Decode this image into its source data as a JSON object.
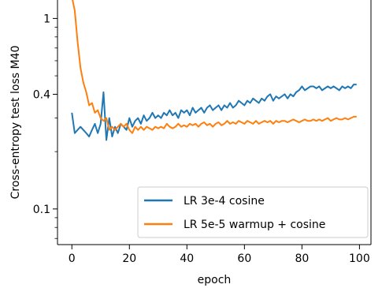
{
  "chart_data": {
    "type": "line",
    "title": "",
    "xlabel": "epoch",
    "ylabel": "Cross-entropy test loss M40",
    "xlim": [
      -5,
      104
    ],
    "ylim": [
      0.065,
      1.25
    ],
    "yscale": "log",
    "grid": false,
    "legend_position": "lower-right",
    "x_ticks": [
      0,
      20,
      40,
      60,
      80,
      100
    ],
    "x_tick_labels": [
      "0",
      "20",
      "40",
      "60",
      "80",
      "100"
    ],
    "y_ticks": [
      0.1,
      0.4,
      1
    ],
    "y_tick_labels": [
      "0.1",
      "0.4",
      "1"
    ],
    "x": [
      0,
      1,
      2,
      3,
      4,
      5,
      6,
      7,
      8,
      9,
      10,
      11,
      12,
      13,
      14,
      15,
      16,
      17,
      18,
      19,
      20,
      21,
      22,
      23,
      24,
      25,
      26,
      27,
      28,
      29,
      30,
      31,
      32,
      33,
      34,
      35,
      36,
      37,
      38,
      39,
      40,
      41,
      42,
      43,
      44,
      45,
      46,
      47,
      48,
      49,
      50,
      51,
      52,
      53,
      54,
      55,
      56,
      57,
      58,
      59,
      60,
      61,
      62,
      63,
      64,
      65,
      66,
      67,
      68,
      69,
      70,
      71,
      72,
      73,
      74,
      75,
      76,
      77,
      78,
      79,
      80,
      81,
      82,
      83,
      84,
      85,
      86,
      87,
      88,
      89,
      90,
      91,
      92,
      93,
      94,
      95,
      96,
      97,
      98,
      99
    ],
    "series": [
      {
        "name": "LR 3e-4 cosine",
        "color": "#1f77b4",
        "values": [
          0.32,
          0.25,
          0.26,
          0.27,
          0.26,
          0.25,
          0.24,
          0.26,
          0.28,
          0.25,
          0.28,
          0.41,
          0.23,
          0.3,
          0.24,
          0.27,
          0.25,
          0.28,
          0.27,
          0.26,
          0.3,
          0.27,
          0.29,
          0.3,
          0.28,
          0.31,
          0.29,
          0.3,
          0.32,
          0.3,
          0.31,
          0.3,
          0.32,
          0.31,
          0.33,
          0.31,
          0.32,
          0.3,
          0.33,
          0.32,
          0.33,
          0.31,
          0.34,
          0.32,
          0.33,
          0.34,
          0.32,
          0.34,
          0.35,
          0.33,
          0.34,
          0.35,
          0.33,
          0.35,
          0.34,
          0.36,
          0.34,
          0.35,
          0.37,
          0.36,
          0.35,
          0.37,
          0.36,
          0.38,
          0.37,
          0.36,
          0.38,
          0.37,
          0.39,
          0.4,
          0.37,
          0.39,
          0.38,
          0.39,
          0.4,
          0.38,
          0.4,
          0.39,
          0.41,
          0.42,
          0.44,
          0.42,
          0.43,
          0.44,
          0.44,
          0.43,
          0.44,
          0.42,
          0.43,
          0.44,
          0.43,
          0.44,
          0.43,
          0.42,
          0.44,
          0.43,
          0.44,
          0.43,
          0.45,
          0.45
        ]
      },
      {
        "name": "LR 5e-5 warmup + cosine",
        "color": "#ff7f0e",
        "values": [
          1.3,
          1.1,
          0.75,
          0.55,
          0.46,
          0.41,
          0.35,
          0.36,
          0.32,
          0.33,
          0.3,
          0.29,
          0.3,
          0.26,
          0.27,
          0.26,
          0.27,
          0.28,
          0.27,
          0.28,
          0.26,
          0.25,
          0.27,
          0.26,
          0.27,
          0.26,
          0.27,
          0.265,
          0.26,
          0.27,
          0.265,
          0.27,
          0.265,
          0.28,
          0.27,
          0.265,
          0.27,
          0.28,
          0.27,
          0.275,
          0.27,
          0.28,
          0.275,
          0.28,
          0.27,
          0.28,
          0.285,
          0.275,
          0.28,
          0.27,
          0.28,
          0.285,
          0.275,
          0.28,
          0.29,
          0.28,
          0.285,
          0.28,
          0.29,
          0.285,
          0.28,
          0.29,
          0.285,
          0.28,
          0.29,
          0.28,
          0.285,
          0.29,
          0.285,
          0.29,
          0.28,
          0.29,
          0.285,
          0.29,
          0.29,
          0.285,
          0.29,
          0.295,
          0.29,
          0.285,
          0.29,
          0.295,
          0.29,
          0.29,
          0.295,
          0.29,
          0.295,
          0.29,
          0.295,
          0.3,
          0.29,
          0.295,
          0.3,
          0.295,
          0.295,
          0.3,
          0.295,
          0.3,
          0.305,
          0.305
        ]
      }
    ]
  }
}
